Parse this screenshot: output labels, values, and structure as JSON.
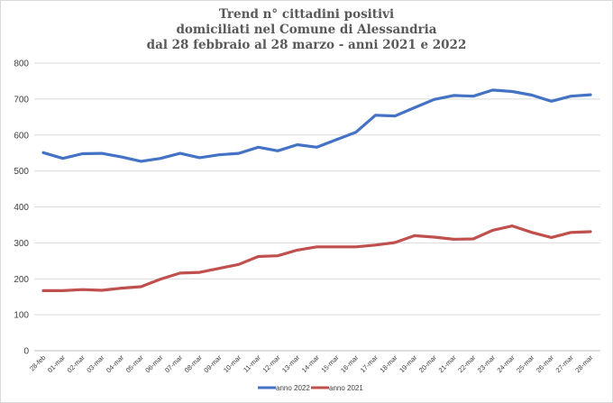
{
  "chart_data": {
    "type": "line",
    "title_lines": [
      "Trend n° cittadini positivi",
      "domiciliati nel Comune di Alessandria",
      "dal 28 febbraio al 28 marzo - anni 2021 e 2022"
    ],
    "categories": [
      "28-feb",
      "01-mar",
      "02-mar",
      "03-mar",
      "04-mar",
      "05-mar",
      "06-mar",
      "07-mar",
      "08-mar",
      "09-mar",
      "10-mar",
      "11-mar",
      "12-mar",
      "13-mar",
      "14-mar",
      "15-mar",
      "16-mar",
      "17-mar",
      "18-mar",
      "19-mar",
      "20-mar",
      "21-mar",
      "22-mar",
      "23-mar",
      "24-mar",
      "25-mar",
      "26-mar",
      "27-mar",
      "28-mar"
    ],
    "ylim": [
      0,
      800
    ],
    "yticks": [
      0,
      100,
      200,
      300,
      400,
      500,
      600,
      700,
      800
    ],
    "grid": true,
    "legend_position": "bottom",
    "series": [
      {
        "name": "anno 2022",
        "color": "#4472c4",
        "values": [
          551,
          535,
          548,
          549,
          539,
          527,
          535,
          549,
          537,
          545,
          549,
          566,
          556,
          573,
          566,
          587,
          608,
          655,
          653,
          676,
          699,
          710,
          708,
          725,
          721,
          711,
          694,
          708,
          712
        ]
      },
      {
        "name": "anno 2021",
        "color": "#c0504d",
        "values": [
          167,
          167,
          170,
          168,
          174,
          178,
          199,
          216,
          218,
          229,
          240,
          262,
          264,
          280,
          289,
          289,
          289,
          294,
          301,
          320,
          316,
          310,
          311,
          335,
          347,
          329,
          315,
          329,
          331
        ]
      }
    ]
  }
}
